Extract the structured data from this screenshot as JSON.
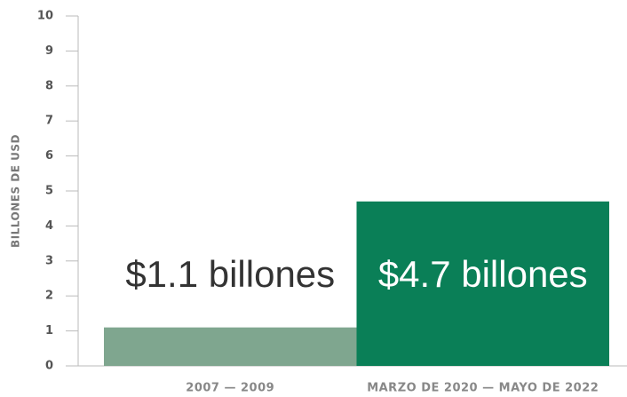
{
  "chart_data": {
    "type": "bar",
    "y_label": "BILLONES DE USD",
    "categories": [
      "2007 — 2009",
      "MARZO DE 2020 — MAYO DE 2022"
    ],
    "values": [
      1.1,
      4.7
    ],
    "value_labels": [
      "$1.1 billones",
      "$4.7 billones"
    ],
    "colors": [
      "#7fa68f",
      "#0a7f57"
    ],
    "ylim": [
      0,
      10
    ],
    "yticks": [
      0,
      1,
      2,
      3,
      4,
      5,
      6,
      7,
      8,
      9,
      10
    ],
    "grid": false
  }
}
